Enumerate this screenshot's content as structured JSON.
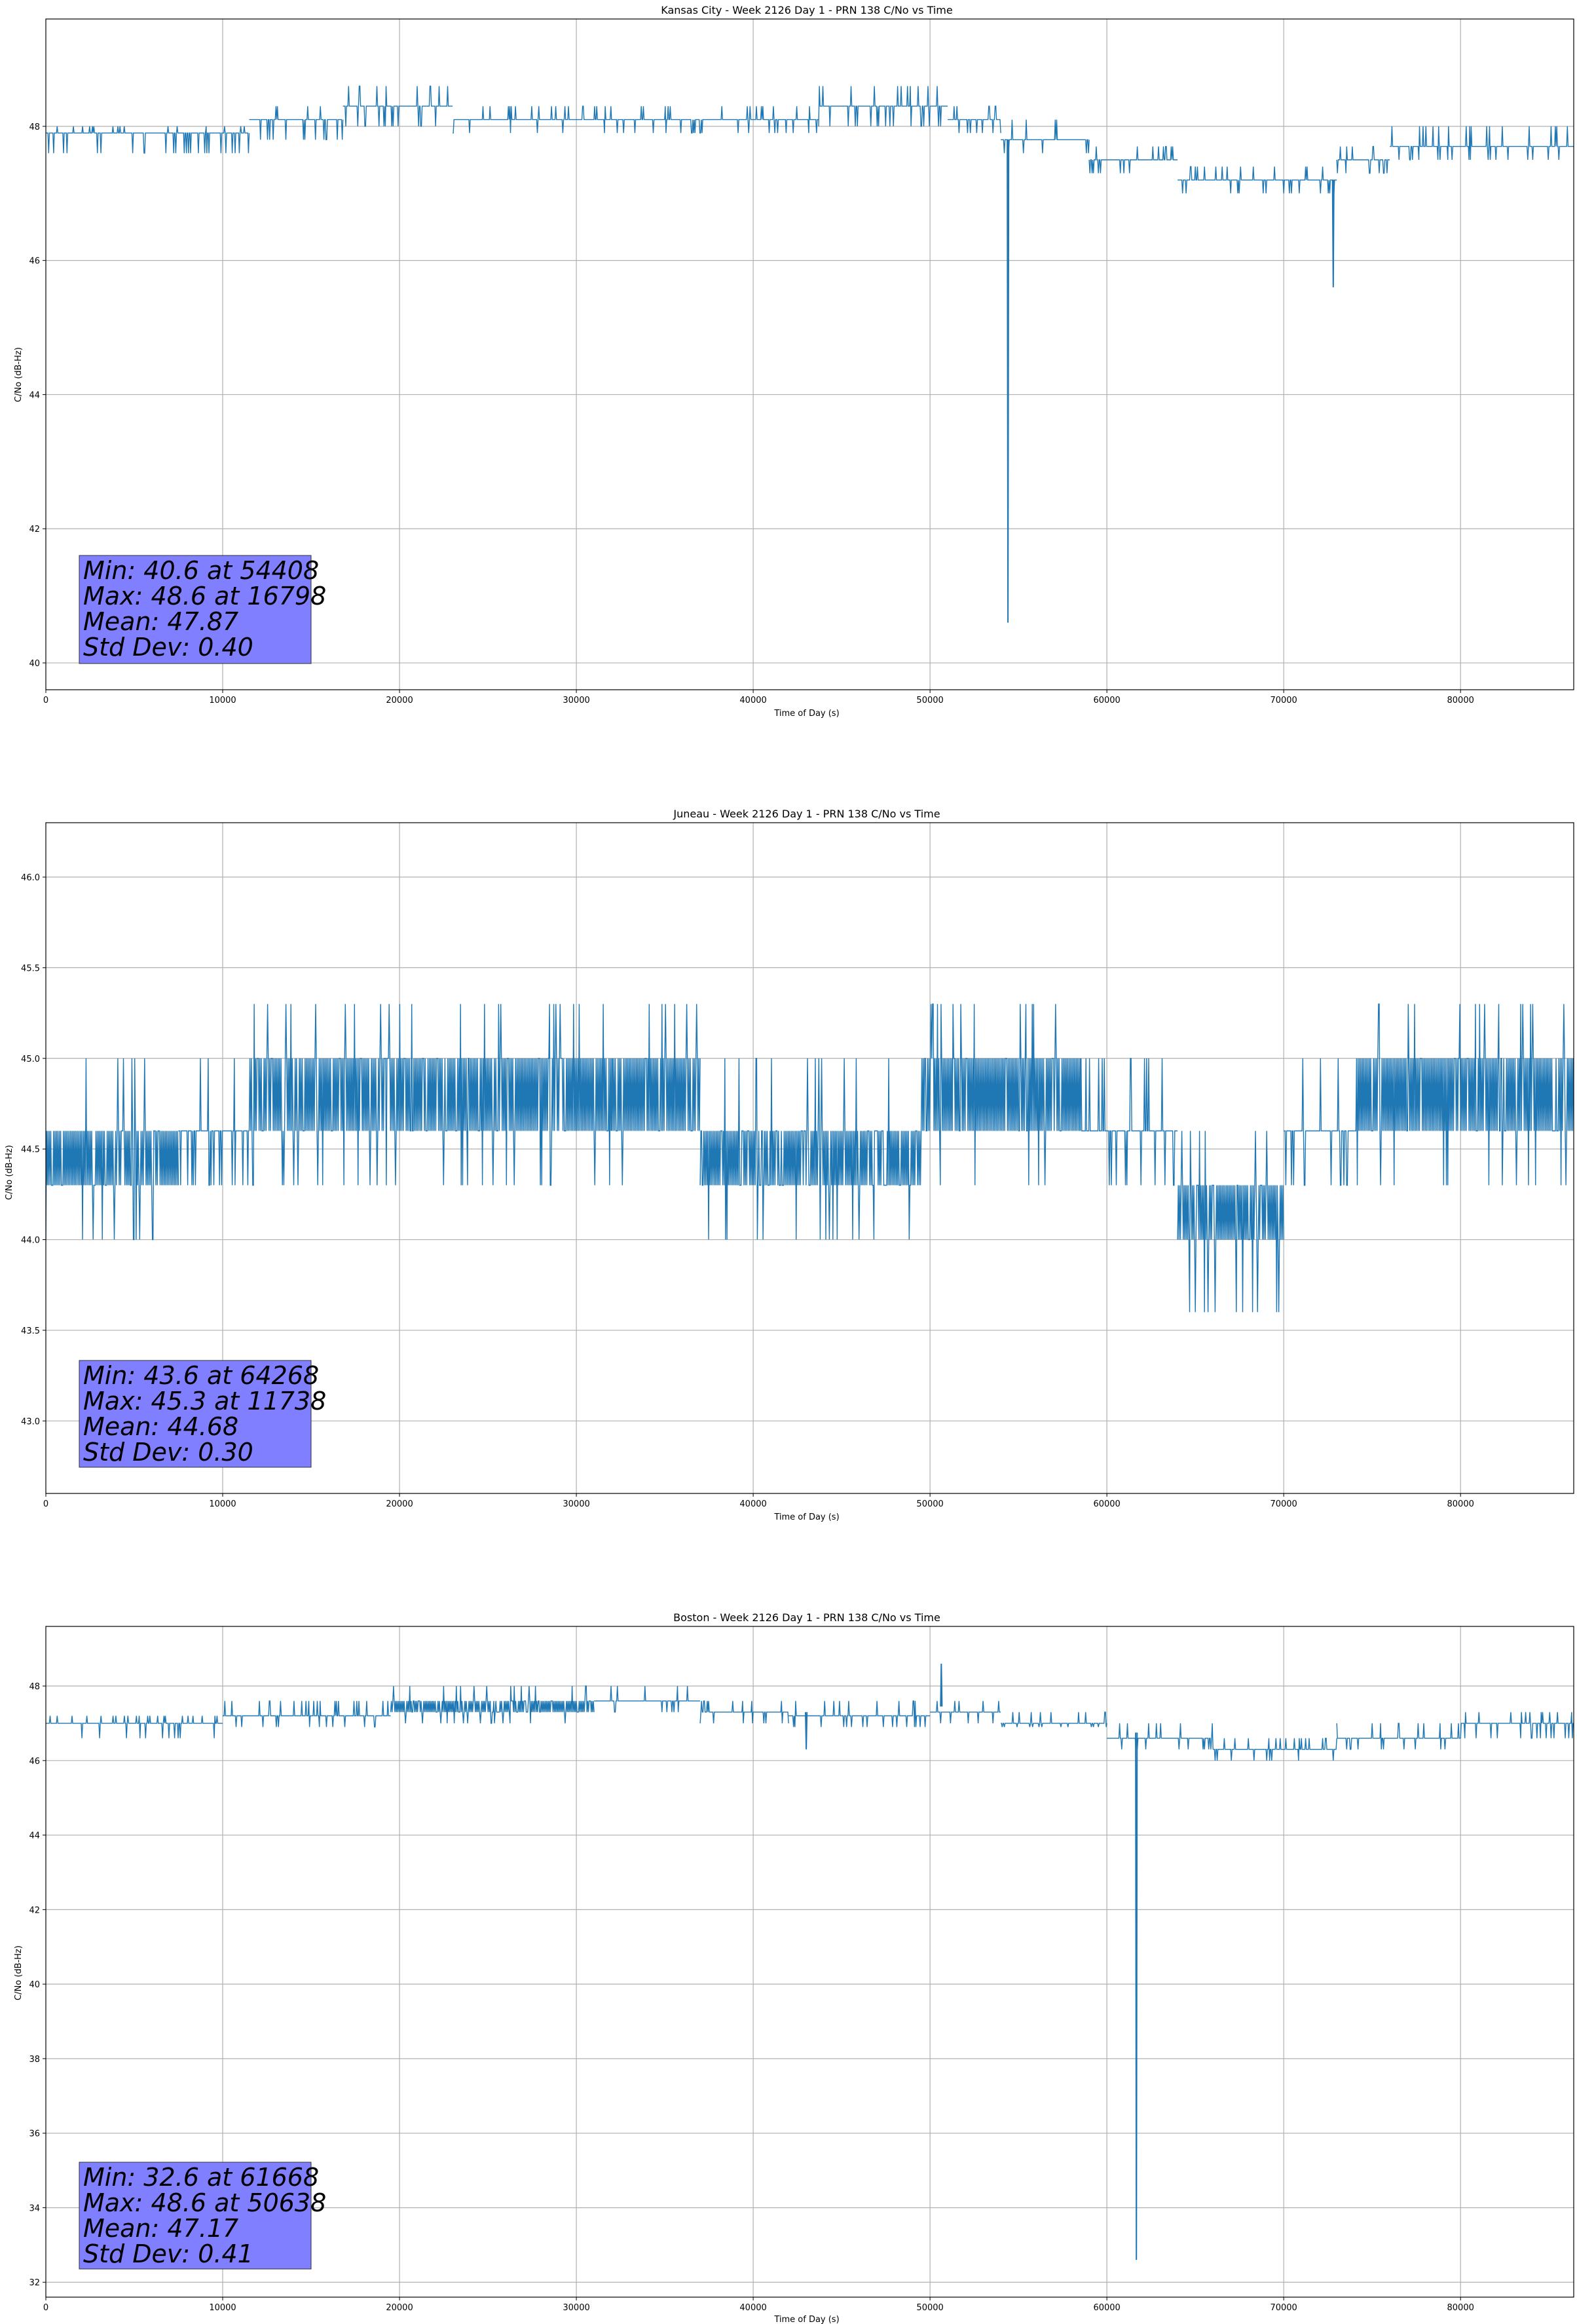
{
  "colors": {
    "series": "#1f77b4",
    "grid": "#b0b0b0",
    "stats_box": "#7f7fff",
    "axis": "#000000"
  },
  "chart_data": [
    {
      "type": "line",
      "title": "Kansas City - Week 2126 Day 1 - PRN 138 C/No vs Time",
      "xlabel": "Time of Day (s)",
      "ylabel": "C/No (dB-Hz)",
      "xlim": [
        0,
        86400
      ],
      "ylim": [
        39.6,
        49.6
      ],
      "xticks": [
        0,
        10000,
        20000,
        30000,
        40000,
        50000,
        60000,
        70000,
        80000
      ],
      "yticks": [
        40,
        42,
        44,
        46,
        48
      ],
      "ytick_labels": [
        "40",
        "42",
        "44",
        "46",
        "48"
      ],
      "grid": true,
      "segments": [
        {
          "x0": 0,
          "x1": 11500,
          "levels": [
            47.6,
            47.9,
            48.0
          ],
          "base": 47.8
        },
        {
          "x0": 11500,
          "x1": 16800,
          "levels": [
            47.8,
            48.1,
            48.3
          ],
          "base": 48.1
        },
        {
          "x0": 16800,
          "x1": 23000,
          "levels": [
            48.0,
            48.3,
            48.6
          ],
          "base": 48.3
        },
        {
          "x0": 23000,
          "x1": 43700,
          "levels": [
            47.9,
            48.1,
            48.3
          ],
          "base": 48.1
        },
        {
          "x0": 43700,
          "x1": 51000,
          "levels": [
            48.0,
            48.3,
            48.6
          ],
          "base": 48.3
        },
        {
          "x0": 51000,
          "x1": 54000,
          "levels": [
            47.9,
            48.1,
            48.3
          ],
          "base": 48.1
        },
        {
          "x0": 54000,
          "x1": 59000,
          "levels": [
            47.6,
            47.8,
            48.1
          ],
          "base": 47.8
        },
        {
          "x0": 59000,
          "x1": 64000,
          "levels": [
            47.3,
            47.5,
            47.7
          ],
          "base": 47.5
        },
        {
          "x0": 64000,
          "x1": 73000,
          "levels": [
            47.0,
            47.2,
            47.4
          ],
          "base": 47.2
        },
        {
          "x0": 73000,
          "x1": 76000,
          "levels": [
            47.3,
            47.5,
            47.7
          ],
          "base": 47.5
        },
        {
          "x0": 76000,
          "x1": 86400,
          "levels": [
            47.5,
            47.7,
            48.0
          ],
          "base": 47.8
        }
      ],
      "spikes": [
        {
          "x": 54408,
          "y": 40.6
        },
        {
          "x": 72800,
          "y": 45.6
        }
      ],
      "stats": {
        "min": "Min: 40.6 at 54408",
        "max": "Max: 48.6 at 16798",
        "mean": "Mean: 47.87",
        "std": "Std Dev: 0.40"
      }
    },
    {
      "type": "line",
      "title": "Juneau - Week 2126 Day 1 - PRN 138 C/No vs Time",
      "xlabel": "Time of Day (s)",
      "ylabel": "C/No (dB-Hz)",
      "xlim": [
        0,
        86400
      ],
      "ylim": [
        42.6,
        46.3
      ],
      "xticks": [
        0,
        10000,
        20000,
        30000,
        40000,
        50000,
        60000,
        70000,
        80000
      ],
      "yticks": [
        43.0,
        43.5,
        44.0,
        44.5,
        45.0,
        45.5,
        46.0
      ],
      "ytick_labels": [
        "43.0",
        "43.5",
        "44.0",
        "44.5",
        "45.0",
        "45.5",
        "46.0"
      ],
      "grid": true,
      "segments": [
        {
          "x0": 0,
          "x1": 7500,
          "levels": [
            44.0,
            44.3,
            44.6,
            45.0
          ],
          "base": 44.45
        },
        {
          "x0": 7500,
          "x1": 11500,
          "levels": [
            44.3,
            44.6,
            45.0
          ],
          "base": 44.6
        },
        {
          "x0": 11500,
          "x1": 32000,
          "levels": [
            44.3,
            44.6,
            45.0,
            45.3
          ],
          "base": 44.8
        },
        {
          "x0": 32000,
          "x1": 37000,
          "levels": [
            44.3,
            44.6,
            45.0,
            45.3
          ],
          "base": 44.7
        },
        {
          "x0": 37000,
          "x1": 49500,
          "levels": [
            44.0,
            44.3,
            44.6,
            45.0
          ],
          "base": 44.45
        },
        {
          "x0": 49500,
          "x1": 58500,
          "levels": [
            44.3,
            44.6,
            45.0,
            45.3
          ],
          "base": 44.8
        },
        {
          "x0": 58500,
          "x1": 64000,
          "levels": [
            44.3,
            44.6,
            45.0
          ],
          "base": 44.45
        },
        {
          "x0": 64000,
          "x1": 70000,
          "levels": [
            43.6,
            44.0,
            44.3,
            44.6
          ],
          "base": 44.15
        },
        {
          "x0": 70000,
          "x1": 74000,
          "levels": [
            44.3,
            44.6,
            45.0
          ],
          "base": 44.5
        },
        {
          "x0": 74000,
          "x1": 86400,
          "levels": [
            44.3,
            44.6,
            45.0,
            45.3
          ],
          "base": 44.8
        }
      ],
      "spikes": [],
      "stats": {
        "min": "Min: 43.6 at 64268",
        "max": "Max: 45.3 at 11738",
        "mean": "Mean: 44.68",
        "std": "Std Dev: 0.30"
      }
    },
    {
      "type": "line",
      "title": "Boston - Week 2126 Day 1 - PRN 138 C/No vs Time",
      "xlabel": "Time of Day (s)",
      "ylabel": "C/No (dB-Hz)",
      "xlim": [
        0,
        86400
      ],
      "ylim": [
        31.6,
        49.6
      ],
      "xticks": [
        0,
        10000,
        20000,
        30000,
        40000,
        50000,
        60000,
        70000,
        80000
      ],
      "yticks": [
        32,
        34,
        36,
        38,
        40,
        42,
        44,
        46,
        48
      ],
      "ytick_labels": [
        "32",
        "34",
        "36",
        "38",
        "40",
        "42",
        "44",
        "46",
        "48"
      ],
      "grid": true,
      "segments": [
        {
          "x0": 0,
          "x1": 10000,
          "levels": [
            46.6,
            47.0,
            47.2
          ],
          "base": 47.1
        },
        {
          "x0": 10000,
          "x1": 19500,
          "levels": [
            46.9,
            47.2,
            47.6
          ],
          "base": 47.3
        },
        {
          "x0": 19500,
          "x1": 31000,
          "levels": [
            47.0,
            47.3,
            47.6,
            48.0
          ],
          "base": 47.45
        },
        {
          "x0": 31000,
          "x1": 37000,
          "levels": [
            47.3,
            47.6,
            48.0
          ],
          "base": 47.7
        },
        {
          "x0": 37000,
          "x1": 42000,
          "levels": [
            47.0,
            47.3,
            47.6
          ],
          "base": 47.45
        },
        {
          "x0": 42000,
          "x1": 50000,
          "levels": [
            46.9,
            47.2,
            47.6
          ],
          "base": 47.3
        },
        {
          "x0": 50000,
          "x1": 54000,
          "levels": [
            47.0,
            47.3,
            47.6
          ],
          "base": 47.45
        },
        {
          "x0": 54000,
          "x1": 60000,
          "levels": [
            46.9,
            47.0,
            47.3
          ],
          "base": 47.1
        },
        {
          "x0": 60000,
          "x1": 66000,
          "levels": [
            46.3,
            46.6,
            47.0
          ],
          "base": 46.75
        },
        {
          "x0": 66000,
          "x1": 73000,
          "levels": [
            46.0,
            46.3,
            46.6
          ],
          "base": 46.45
        },
        {
          "x0": 73000,
          "x1": 80000,
          "levels": [
            46.3,
            46.6,
            47.0
          ],
          "base": 46.8
        },
        {
          "x0": 80000,
          "x1": 86400,
          "levels": [
            46.6,
            47.0,
            47.3
          ],
          "base": 47.0
        }
      ],
      "spikes": [
        {
          "x": 61668,
          "y": 32.6
        },
        {
          "x": 50638,
          "y": 48.6
        },
        {
          "x": 43000,
          "y": 46.3
        }
      ],
      "stats": {
        "min": "Min: 32.6 at 61668",
        "max": "Max: 48.6 at 50638",
        "mean": "Mean: 47.17",
        "std": "Std Dev: 0.41"
      }
    }
  ]
}
